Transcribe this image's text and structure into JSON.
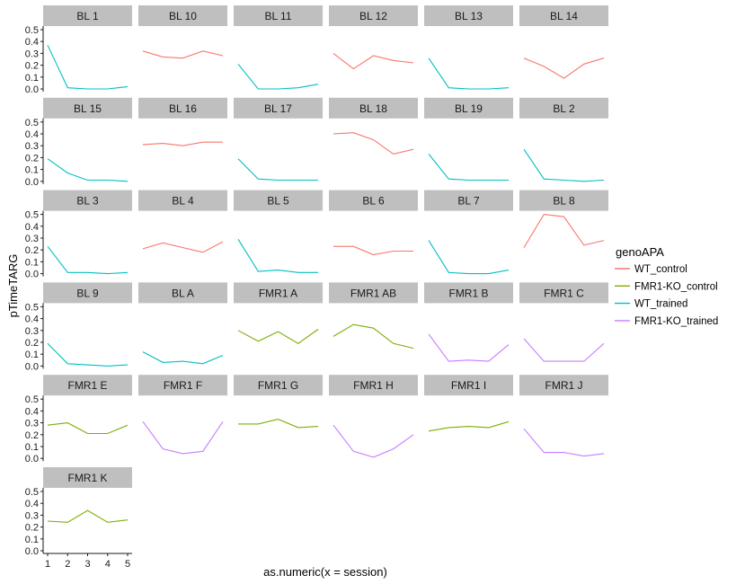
{
  "chart_data": {
    "type": "line",
    "xlabel": "as.numeric(x = session)",
    "ylabel": "pTimeTARG",
    "x": [
      1,
      2,
      3,
      4,
      5
    ],
    "x_ticks": [
      "1",
      "2",
      "3",
      "4",
      "5"
    ],
    "ylim": [
      0,
      0.5
    ],
    "y_ticks": [
      "0.0",
      "0.1",
      "0.2",
      "0.3",
      "0.4",
      "0.5"
    ],
    "grid": false,
    "legend": {
      "title": "genoAPA",
      "position": "right",
      "entries": [
        {
          "label": "WT_control",
          "color": "#F8766D"
        },
        {
          "label": "FMR1-KO_control",
          "color": "#7CAE00"
        },
        {
          "label": "WT_trained",
          "color": "#00BFC4"
        },
        {
          "label": "FMR1-KO_trained",
          "color": "#C77CFF"
        }
      ]
    },
    "panels": [
      {
        "label": "BL 1",
        "group": "WT_trained",
        "values": [
          0.37,
          0.01,
          0.0,
          0.0,
          0.02
        ]
      },
      {
        "label": "BL 10",
        "group": "WT_control",
        "values": [
          0.32,
          0.27,
          0.26,
          0.32,
          0.28
        ]
      },
      {
        "label": "BL 11",
        "group": "WT_trained",
        "values": [
          0.21,
          0.0,
          0.0,
          0.01,
          0.04
        ]
      },
      {
        "label": "BL 12",
        "group": "WT_control",
        "values": [
          0.3,
          0.17,
          0.28,
          0.24,
          0.22
        ]
      },
      {
        "label": "BL 13",
        "group": "WT_trained",
        "values": [
          0.26,
          0.01,
          0.0,
          0.0,
          0.01
        ]
      },
      {
        "label": "BL 14",
        "group": "WT_control",
        "values": [
          0.26,
          0.19,
          0.09,
          0.21,
          0.26
        ]
      },
      {
        "label": "BL 15",
        "group": "WT_trained",
        "values": [
          0.19,
          0.07,
          0.01,
          0.01,
          0.0
        ]
      },
      {
        "label": "BL 16",
        "group": "WT_control",
        "values": [
          0.31,
          0.32,
          0.3,
          0.33,
          0.33
        ]
      },
      {
        "label": "BL 17",
        "group": "WT_trained",
        "values": [
          0.19,
          0.02,
          0.01,
          0.01,
          0.01
        ]
      },
      {
        "label": "BL 18",
        "group": "WT_control",
        "values": [
          0.4,
          0.41,
          0.35,
          0.23,
          0.27
        ]
      },
      {
        "label": "BL 19",
        "group": "WT_trained",
        "values": [
          0.23,
          0.02,
          0.01,
          0.01,
          0.01
        ]
      },
      {
        "label": "BL 2",
        "group": "WT_trained",
        "values": [
          0.27,
          0.02,
          0.01,
          0.0,
          0.01
        ]
      },
      {
        "label": "BL 3",
        "group": "WT_trained",
        "values": [
          0.23,
          0.01,
          0.01,
          0.0,
          0.01
        ]
      },
      {
        "label": "BL 4",
        "group": "WT_control",
        "values": [
          0.21,
          0.26,
          0.22,
          0.18,
          0.27
        ]
      },
      {
        "label": "BL 5",
        "group": "WT_trained",
        "values": [
          0.29,
          0.02,
          0.03,
          0.01,
          0.01
        ]
      },
      {
        "label": "BL 6",
        "group": "WT_control",
        "values": [
          0.23,
          0.23,
          0.16,
          0.19,
          0.19
        ]
      },
      {
        "label": "BL 7",
        "group": "WT_trained",
        "values": [
          0.28,
          0.01,
          0.0,
          0.0,
          0.03
        ]
      },
      {
        "label": "BL 8",
        "group": "WT_control",
        "values": [
          0.22,
          0.5,
          0.48,
          0.24,
          0.28
        ]
      },
      {
        "label": "BL 9",
        "group": "WT_trained",
        "values": [
          0.19,
          0.02,
          0.01,
          0.0,
          0.01
        ]
      },
      {
        "label": "BL A",
        "group": "WT_trained",
        "values": [
          0.12,
          0.03,
          0.04,
          0.02,
          0.09
        ]
      },
      {
        "label": "FMR1 A",
        "group": "FMR1-KO_control",
        "values": [
          0.3,
          0.21,
          0.29,
          0.19,
          0.31
        ]
      },
      {
        "label": "FMR1 AB",
        "group": "FMR1-KO_control",
        "values": [
          0.25,
          0.35,
          0.32,
          0.19,
          0.15
        ]
      },
      {
        "label": "FMR1 B",
        "group": "FMR1-KO_trained",
        "values": [
          0.27,
          0.04,
          0.05,
          0.04,
          0.18
        ]
      },
      {
        "label": "FMR1 C",
        "group": "FMR1-KO_trained",
        "values": [
          0.23,
          0.04,
          0.04,
          0.04,
          0.19
        ]
      },
      {
        "label": "FMR1 E",
        "group": "FMR1-KO_control",
        "values": [
          0.28,
          0.3,
          0.21,
          0.21,
          0.28
        ]
      },
      {
        "label": "FMR1 F",
        "group": "FMR1-KO_trained",
        "values": [
          0.31,
          0.08,
          0.04,
          0.06,
          0.31
        ]
      },
      {
        "label": "FMR1 G",
        "group": "FMR1-KO_control",
        "values": [
          0.29,
          0.29,
          0.33,
          0.26,
          0.27
        ]
      },
      {
        "label": "FMR1 H",
        "group": "FMR1-KO_trained",
        "values": [
          0.28,
          0.06,
          0.01,
          0.08,
          0.2
        ]
      },
      {
        "label": "FMR1 I",
        "group": "FMR1-KO_control",
        "values": [
          0.23,
          0.26,
          0.27,
          0.26,
          0.31
        ]
      },
      {
        "label": "FMR1 J",
        "group": "FMR1-KO_trained",
        "values": [
          0.25,
          0.05,
          0.05,
          0.02,
          0.04
        ]
      },
      {
        "label": "FMR1 K",
        "group": "FMR1-KO_control",
        "values": [
          0.25,
          0.24,
          0.34,
          0.24,
          0.26
        ]
      }
    ]
  }
}
